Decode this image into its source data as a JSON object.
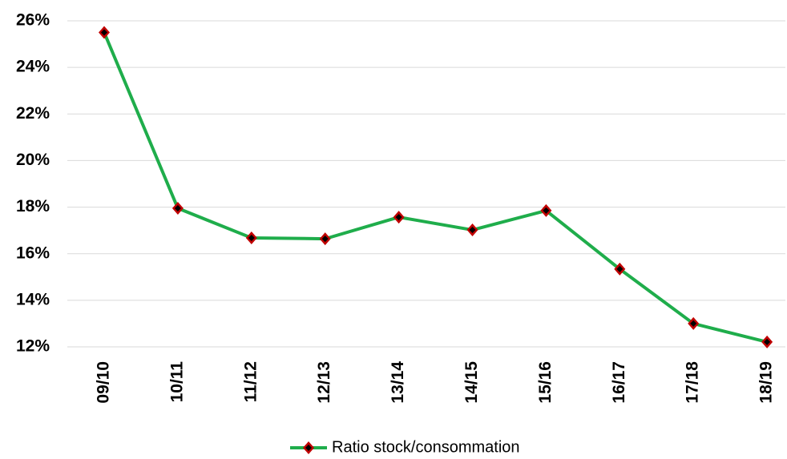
{
  "chart_data": {
    "type": "line",
    "categories": [
      "09/10",
      "10/11",
      "11/12",
      "12/13",
      "13/14",
      "14/15",
      "15/16",
      "16/17",
      "17/18",
      "18/19"
    ],
    "series": [
      {
        "name": "Ratio stock/consommation",
        "color": "#1fad4b",
        "marker_color": "#c00000",
        "values": [
          25.5,
          17.95,
          16.68,
          16.64,
          17.57,
          17.02,
          17.85,
          15.34,
          13.0,
          12.21
        ]
      }
    ],
    "ylim": [
      12,
      26
    ],
    "yticks": [
      {
        "value": 12,
        "label": "12%"
      },
      {
        "value": 14,
        "label": "14%"
      },
      {
        "value": 16,
        "label": "16%"
      },
      {
        "value": 18,
        "label": "18%"
      },
      {
        "value": 20,
        "label": "20%"
      },
      {
        "value": 22,
        "label": "22%"
      },
      {
        "value": 24,
        "label": "24%"
      },
      {
        "value": 26,
        "label": "26%"
      }
    ],
    "grid": true,
    "legend": "bottom"
  }
}
